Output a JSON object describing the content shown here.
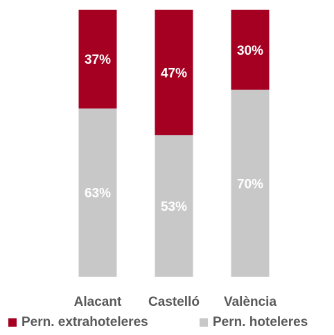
{
  "chart_data": {
    "type": "bar",
    "stacked": true,
    "percent": true,
    "categories": [
      "Alacant",
      "Castelló",
      "València"
    ],
    "series": [
      {
        "name": "Pern. hoteleres",
        "values": [
          63,
          53,
          70
        ],
        "labels": [
          "63%",
          "53%",
          "70%"
        ],
        "color": "#c8c8c8"
      },
      {
        "name": "Pern. extrahoteleres",
        "values": [
          37,
          47,
          30
        ],
        "labels": [
          "37%",
          "47%",
          "30%"
        ],
        "color": "#a50021"
      }
    ],
    "ylim": [
      0,
      100
    ],
    "grid": false,
    "legend_position": "bottom"
  }
}
